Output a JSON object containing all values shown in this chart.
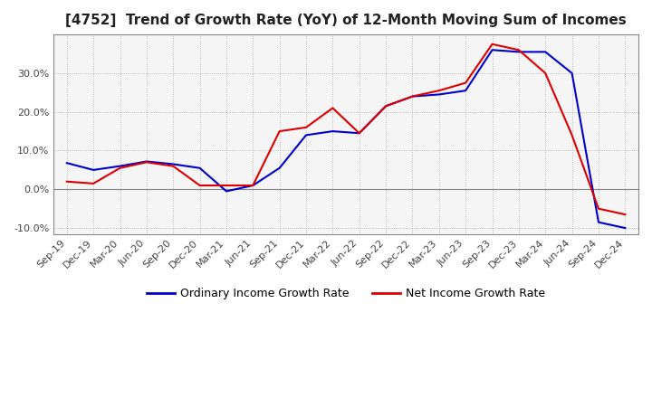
{
  "title": "[4752]  Trend of Growth Rate (YoY) of 12-Month Moving Sum of Incomes",
  "title_fontsize": 11,
  "ylim": [
    -0.115,
    0.4
  ],
  "yticks": [
    -0.1,
    0.0,
    0.1,
    0.2,
    0.3
  ],
  "background_color": "#ffffff",
  "grid_color": "#aaaaaa",
  "plot_bg_color": "#f5f5f5",
  "ordinary_color": "#0000cc",
  "net_color": "#dd0000",
  "legend_ordinary": "Ordinary Income Growth Rate",
  "legend_net": "Net Income Growth Rate",
  "x_labels": [
    "Sep-19",
    "Dec-19",
    "Mar-20",
    "Jun-20",
    "Sep-20",
    "Dec-20",
    "Mar-21",
    "Jun-21",
    "Sep-21",
    "Dec-21",
    "Mar-22",
    "Jun-22",
    "Sep-22",
    "Dec-22",
    "Mar-23",
    "Jun-23",
    "Sep-23",
    "Dec-23",
    "Mar-24",
    "Jun-24",
    "Sep-24",
    "Dec-24"
  ],
  "ordinary": [
    0.068,
    0.05,
    0.06,
    0.072,
    0.065,
    0.055,
    -0.005,
    0.01,
    0.055,
    0.14,
    0.15,
    0.145,
    0.215,
    0.24,
    0.245,
    0.255,
    0.36,
    0.355,
    0.355,
    0.3,
    -0.085,
    -0.1
  ],
  "net": [
    0.02,
    0.015,
    0.055,
    0.07,
    0.06,
    0.01,
    0.01,
    0.01,
    0.15,
    0.16,
    0.21,
    0.145,
    0.215,
    0.24,
    0.255,
    0.275,
    0.375,
    0.36,
    0.3,
    0.14,
    -0.05,
    -0.065
  ]
}
